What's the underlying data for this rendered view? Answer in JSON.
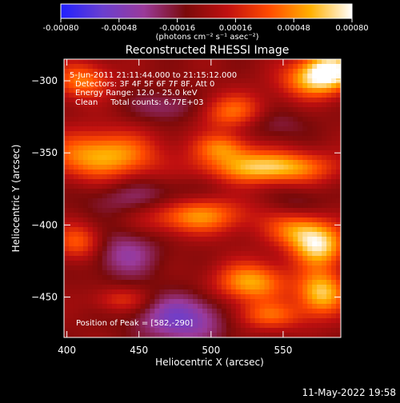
{
  "colorbar": {
    "ticks": [
      "-0.00080",
      "-0.00048",
      "-0.00016",
      "0.00016",
      "0.00048",
      "0.00080"
    ],
    "tick_values": [
      -0.0008,
      -0.00048,
      -0.00016,
      0.00016,
      0.00048,
      0.0008
    ],
    "units": "(photons cm⁻² s⁻¹ asec⁻²)",
    "range": [
      -0.0008,
      0.0008
    ],
    "stops": [
      "#2020ff",
      "#6a3fd0",
      "#9a3a9a",
      "#7a0a0a",
      "#c01010",
      "#ff4a00",
      "#ffb000",
      "#ffffff"
    ]
  },
  "info": {
    "line1": "5-Jun-2011 21:11:44.000 to 21:15:12.000",
    "line2": "Detectors: 3F 4F 5F 6F 7F 8F, Att 0",
    "line3": "Energy Range: 12.0 - 25.0 keV",
    "line4": "Clean     Total counts: 6.77E+03",
    "peak": "Position of Peak = [582,-290]"
  },
  "footer": {
    "date": "11-May-2022 19:58"
  },
  "chart_data": {
    "type": "heatmap",
    "title": "Reconstructed RHESSI Image",
    "xlabel": "Heliocentric X (arcsec)",
    "ylabel": "Heliocentric Y (arcsec)",
    "xlim": [
      398,
      590
    ],
    "ylim": [
      -478,
      -285
    ],
    "xticks": [
      400,
      450,
      500,
      550
    ],
    "yticks": [
      -300,
      -350,
      -400,
      -450
    ],
    "peak_position": [
      582,
      -290
    ],
    "blobs": [
      {
        "x": 583,
        "y": -292,
        "sx": 14,
        "sy": 10,
        "a": 0.95
      },
      {
        "x": 568,
        "y": -300,
        "sx": 16,
        "sy": 9,
        "a": 0.55
      },
      {
        "x": 515,
        "y": -322,
        "sx": 16,
        "sy": 9,
        "a": 0.6
      },
      {
        "x": 540,
        "y": -360,
        "sx": 30,
        "sy": 8,
        "a": 0.9
      },
      {
        "x": 508,
        "y": -346,
        "sx": 14,
        "sy": 7,
        "a": 0.55
      },
      {
        "x": 425,
        "y": -352,
        "sx": 26,
        "sy": 12,
        "a": 0.8
      },
      {
        "x": 410,
        "y": -300,
        "sx": 14,
        "sy": 9,
        "a": 0.6
      },
      {
        "x": 488,
        "y": -393,
        "sx": 26,
        "sy": 9,
        "a": 0.75
      },
      {
        "x": 560,
        "y": -403,
        "sx": 15,
        "sy": 9,
        "a": 0.6
      },
      {
        "x": 575,
        "y": -415,
        "sx": 13,
        "sy": 10,
        "a": 0.85
      },
      {
        "x": 408,
        "y": -412,
        "sx": 12,
        "sy": 9,
        "a": 0.55
      },
      {
        "x": 528,
        "y": -440,
        "sx": 18,
        "sy": 10,
        "a": 0.75
      },
      {
        "x": 577,
        "y": -447,
        "sx": 12,
        "sy": 11,
        "a": 0.85
      },
      {
        "x": 540,
        "y": -463,
        "sx": 18,
        "sy": 7,
        "a": 0.5
      },
      {
        "x": 438,
        "y": -452,
        "sx": 14,
        "sy": 6,
        "a": 0.35
      },
      {
        "x": 470,
        "y": -318,
        "sx": 18,
        "sy": 8,
        "a": -0.3
      },
      {
        "x": 455,
        "y": -382,
        "sx": 30,
        "sy": 10,
        "a": -0.35
      },
      {
        "x": 480,
        "y": -465,
        "sx": 22,
        "sy": 12,
        "a": -0.6
      },
      {
        "x": 440,
        "y": -420,
        "sx": 18,
        "sy": 12,
        "a": -0.4
      },
      {
        "x": 540,
        "y": -330,
        "sx": 18,
        "sy": 8,
        "a": -0.25
      },
      {
        "x": 560,
        "y": -385,
        "sx": 14,
        "sy": 8,
        "a": -0.2
      }
    ]
  }
}
